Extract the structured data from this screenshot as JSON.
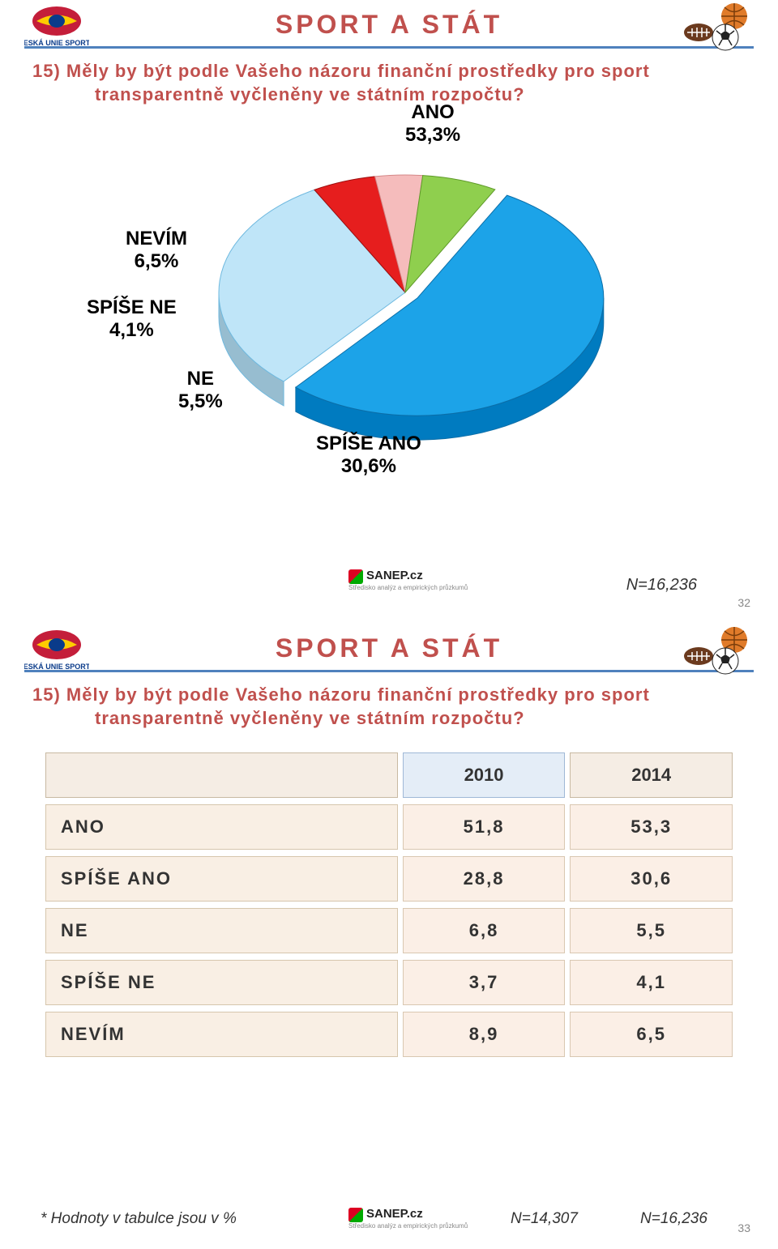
{
  "title": "SPORT A STÁT",
  "question_line1": "15) Měly by být podle Vašeho názoru finanční prostředky pro sport",
  "question_line2": "transparentně vyčleněny ve státním rozpočtu?",
  "page_num_top": "32",
  "page_num_bottom": "33",
  "n_top": "N=16,236",
  "footnote": "* Hodnoty v tabulce jsou v %",
  "n_bottom_a": "N=14,307",
  "n_bottom_b": "N=16,236",
  "sanep_brand": "SANEP.cz",
  "sanep_sub": "Středisko analýz a empirických průzkumů",
  "chart": {
    "type": "pie",
    "background_color": "#ffffff",
    "label_fontsize": 24,
    "label_fontweight": "bold",
    "label_color": "#000000",
    "slices": [
      {
        "label": "ANO",
        "pct": "53,3%",
        "value": 53.3,
        "color": "#1ca3e8",
        "stroke": "#0b6ea8"
      },
      {
        "label": "SPÍŠE ANO",
        "pct": "30,6%",
        "value": 30.6,
        "color": "#bfe5f8",
        "stroke": "#6fb9df"
      },
      {
        "label": "NE",
        "pct": "5,5%",
        "value": 5.5,
        "color": "#e61e1e",
        "stroke": "#9c0e0e"
      },
      {
        "label": "SPÍŠE NE",
        "pct": "4,1%",
        "value": 4.1,
        "color": "#f5bcbc",
        "stroke": "#d48888"
      },
      {
        "label": "NEVÍM",
        "pct": "6,5%",
        "value": 6.5,
        "color": "#8fcf4e",
        "stroke": "#5e9a28"
      }
    ]
  },
  "table": {
    "col_headers": [
      "2010",
      "2014"
    ],
    "header_bg_empty": "#f5ede4",
    "header_bg_2010": "#e4edf7",
    "header_bg_2014": "#f5ede4",
    "row_bg": "#f9efe4",
    "cell_bg": "#fbefe6",
    "border_color": "#d6c6ad",
    "fontsize": 22,
    "rows": [
      {
        "label": "ANO",
        "v2010": "51,8",
        "v2014": "53,3"
      },
      {
        "label": "SPÍŠE ANO",
        "v2010": "28,8",
        "v2014": "30,6"
      },
      {
        "label": "NE",
        "v2010": "6,8",
        "v2014": "5,5"
      },
      {
        "label": "SPÍŠE NE",
        "v2010": "3,7",
        "v2014": "4,1"
      },
      {
        "label": "NEVÍM",
        "v2010": "8,9",
        "v2014": "6,5"
      }
    ]
  }
}
